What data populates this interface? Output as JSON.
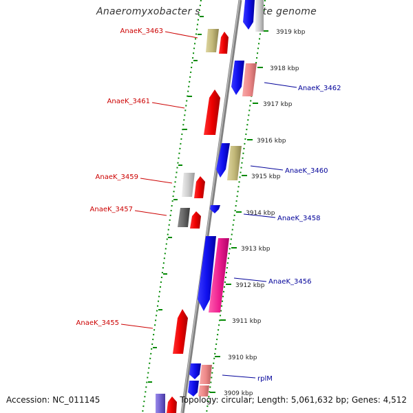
{
  "title": "Anaeromyxobacter sp. K, complete genome",
  "footer": {
    "accession": "Accession: NC_011145",
    "topology": "Topology: circular; Length: 5,061,632 bp; Genes: 4,512"
  },
  "colors": {
    "plus_strand_label": "#cc0000",
    "minus_strand_label": "#000099",
    "backbone": "#888888",
    "dotted_border": "#008800"
  },
  "ticks": [
    "3919 kbp",
    "3918 kbp",
    "3917 kbp",
    "3916 kbp",
    "3915 kbp",
    "3914 kbp",
    "3913 kbp",
    "3912 kbp",
    "3911 kbp",
    "3910 kbp",
    "3909 kbp"
  ],
  "gene_labels": [
    {
      "text": "AnaeK_3463",
      "strand": "plus"
    },
    {
      "text": "AnaeK_3462",
      "strand": "minus"
    },
    {
      "text": "AnaeK_3461",
      "strand": "plus"
    },
    {
      "text": "AnaeK_3460",
      "strand": "minus"
    },
    {
      "text": "AnaeK_3459",
      "strand": "plus"
    },
    {
      "text": "AnaeK_3458",
      "strand": "minus"
    },
    {
      "text": "AnaeK_3457",
      "strand": "plus"
    },
    {
      "text": "AnaeK_3456",
      "strand": "minus"
    },
    {
      "text": "AnaeK_3455",
      "strand": "plus"
    },
    {
      "text": "rplM",
      "strand": "minus"
    }
  ]
}
